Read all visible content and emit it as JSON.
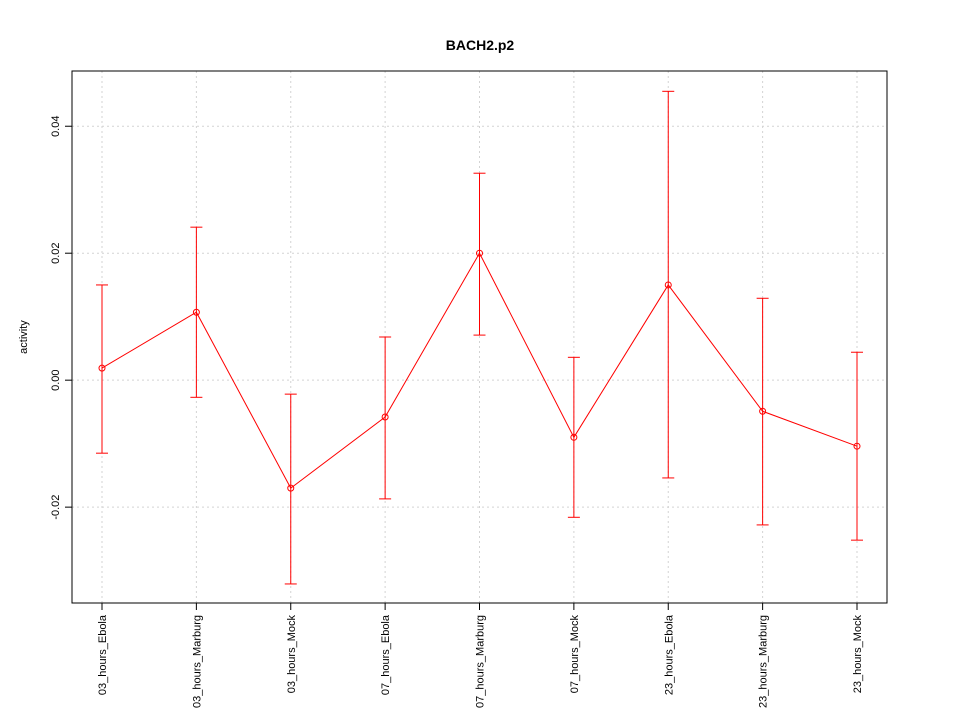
{
  "chart_data": {
    "type": "line",
    "title": "BACH2.p2",
    "xlabel": "",
    "ylabel": "activity",
    "categories": [
      "03_hours_Ebola",
      "03_hours_Marburg",
      "03_hours_Mock",
      "07_hours_Ebola",
      "07_hours_Marburg",
      "07_hours_Mock",
      "23_hours_Ebola",
      "23_hours_Marburg",
      "23_hours_Mock"
    ],
    "series": [
      {
        "name": "activity",
        "color": "#ff0000",
        "values": [
          0.0019,
          0.0107,
          -0.017,
          -0.0058,
          0.02,
          -0.009,
          0.015,
          -0.0049,
          -0.0104
        ],
        "upper": [
          0.015,
          0.0241,
          -0.0022,
          0.0068,
          0.0326,
          0.0036,
          0.0455,
          0.0129,
          0.0044
        ],
        "lower": [
          -0.0115,
          -0.0027,
          -0.0321,
          -0.0187,
          0.0071,
          -0.0216,
          -0.0154,
          -0.0228,
          -0.0252
        ]
      }
    ],
    "yticks": [
      -0.02,
      0.0,
      0.02,
      0.04
    ],
    "ytick_labels": [
      "-0.02",
      "0.00",
      "0.02",
      "0.04"
    ],
    "ylim": [
      -0.0351,
      0.0487
    ],
    "grid": true
  }
}
